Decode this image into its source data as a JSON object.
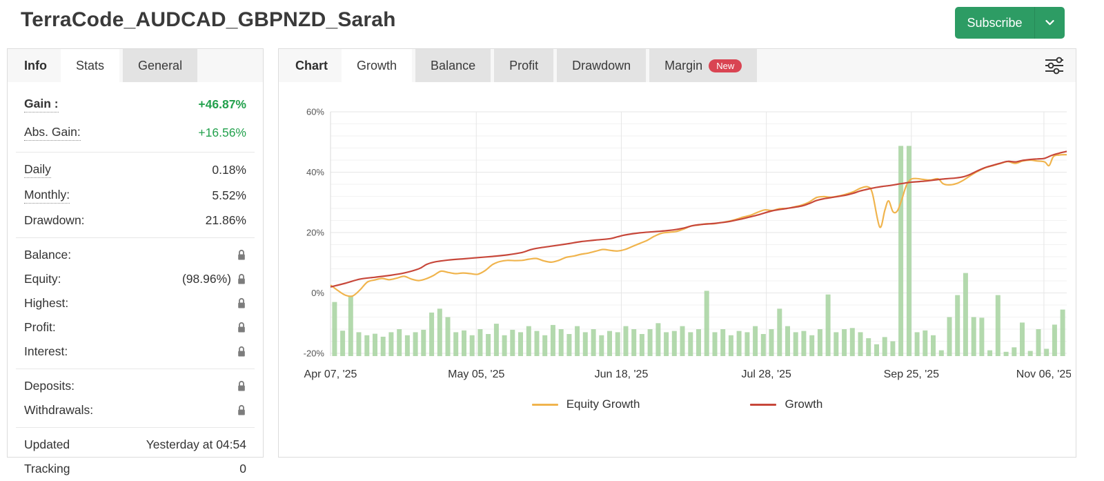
{
  "colors": {
    "subscribe_green": "#2d9c64",
    "gain_green": "#23a14d",
    "badge_red": "#d94452",
    "equity_line": "#f0b44d",
    "growth_line": "#c7473a",
    "bars_green": "#abd5a4"
  },
  "header": {
    "title": "TerraCode_AUDCAD_GBPNZD_Sarah",
    "subscribe_label": "Subscribe"
  },
  "info_panel": {
    "section_label": "Info",
    "tabs": [
      {
        "label": "Stats"
      },
      {
        "label": "General"
      }
    ],
    "rows": {
      "gain": {
        "label": "Gain :",
        "value": "+46.87%"
      },
      "abs_gain": {
        "label": "Abs. Gain:",
        "value": "+16.56%"
      },
      "daily": {
        "label": "Daily",
        "value": "0.18%"
      },
      "monthly": {
        "label": "Monthly:",
        "value": "5.52%"
      },
      "drawdown": {
        "label": "Drawdown:",
        "value": "21.86%"
      },
      "balance": {
        "label": "Balance:",
        "value": ""
      },
      "equity": {
        "label": "Equity:",
        "value": "(98.96%)"
      },
      "highest": {
        "label": "Highest:",
        "value": ""
      },
      "profit": {
        "label": "Profit:",
        "value": ""
      },
      "interest": {
        "label": "Interest:",
        "value": ""
      },
      "deposits": {
        "label": "Deposits:",
        "value": ""
      },
      "withdrawals": {
        "label": "Withdrawals:",
        "value": ""
      },
      "updated": {
        "label": "Updated",
        "value": "Yesterday at 04:54"
      },
      "tracking": {
        "label": "Tracking",
        "value": "0"
      }
    }
  },
  "chart_panel": {
    "section_label": "Chart",
    "tabs": [
      {
        "label": "Growth"
      },
      {
        "label": "Balance"
      },
      {
        "label": "Profit"
      },
      {
        "label": "Drawdown"
      },
      {
        "label": "Margin",
        "badge": "New"
      }
    ]
  },
  "chart_data": {
    "type": "line+bar",
    "ylim": [
      -21.5,
      62
    ],
    "grid": {
      "major": "#e6e6e6",
      "minor": "#f2f2f2",
      "minor_step": 4
    },
    "yticks": [
      {
        "value": 60,
        "label": "60%"
      },
      {
        "value": 40,
        "label": "40%"
      },
      {
        "value": 20,
        "label": "20%"
      },
      {
        "value": 0,
        "label": "0%"
      },
      {
        "value": -20,
        "label": "-20%"
      }
    ],
    "xticks": [
      {
        "pos": 0.0,
        "label": "Apr 07, '25"
      },
      {
        "pos": 0.198,
        "label": "May 05, '25"
      },
      {
        "pos": 0.395,
        "label": "Jun 18, '25"
      },
      {
        "pos": 0.592,
        "label": "Jul 28, '25"
      },
      {
        "pos": 0.789,
        "label": "Sep 25, '25"
      },
      {
        "pos": 0.969,
        "label": "Nov 06, '25"
      }
    ],
    "series": [
      {
        "name": "Equity Growth",
        "color": "#f0b44d",
        "points": [
          [
            0,
            2.6
          ],
          [
            1,
            0.8
          ],
          [
            2,
            -0.7
          ],
          [
            3,
            -1
          ],
          [
            4,
            1
          ],
          [
            5,
            3.6
          ],
          [
            6,
            4.3
          ],
          [
            7,
            4.8
          ],
          [
            8,
            4.4
          ],
          [
            9,
            4.9
          ],
          [
            10,
            5.5
          ],
          [
            11,
            4.6
          ],
          [
            12,
            4.1
          ],
          [
            13,
            4.7
          ],
          [
            14,
            5.8
          ],
          [
            15,
            7.2
          ],
          [
            16,
            6.8
          ],
          [
            17,
            6.4
          ],
          [
            18,
            6.6
          ],
          [
            19,
            6.4
          ],
          [
            20,
            6.2
          ],
          [
            21,
            7.4
          ],
          [
            22,
            9.4
          ],
          [
            23,
            10.4
          ],
          [
            24,
            10.8
          ],
          [
            25,
            10.7
          ],
          [
            26,
            10.8
          ],
          [
            27,
            11.2
          ],
          [
            28,
            11.4
          ],
          [
            29,
            10.6
          ],
          [
            30,
            10.2
          ],
          [
            31,
            10.8
          ],
          [
            32,
            11.8
          ],
          [
            33,
            12.2
          ],
          [
            34,
            12.8
          ],
          [
            35,
            13.2
          ],
          [
            36,
            13.8
          ],
          [
            37,
            14.4
          ],
          [
            38,
            14.1
          ],
          [
            39,
            13.9
          ],
          [
            40,
            14.4
          ],
          [
            41,
            15.4
          ],
          [
            42,
            16.4
          ],
          [
            43,
            17.4
          ],
          [
            44,
            18.8
          ],
          [
            45,
            19.8
          ],
          [
            46,
            20.1
          ],
          [
            47,
            20.4
          ],
          [
            48,
            21.2
          ],
          [
            49,
            22.2
          ],
          [
            50,
            22.5
          ],
          [
            51,
            22.9
          ],
          [
            52,
            22.9
          ],
          [
            53,
            23.3
          ],
          [
            54,
            23.7
          ],
          [
            55,
            24.3
          ],
          [
            56,
            25.1
          ],
          [
            57,
            25.7
          ],
          [
            58,
            26.7
          ],
          [
            59,
            27.5
          ],
          [
            60,
            27.3
          ],
          [
            61,
            27.9
          ],
          [
            62,
            28
          ],
          [
            63,
            28.5
          ],
          [
            64,
            29.1
          ],
          [
            65,
            30.1
          ],
          [
            66,
            31.6
          ],
          [
            67,
            31.9
          ],
          [
            68,
            31.7
          ],
          [
            69,
            32.1
          ],
          [
            70,
            32.7
          ],
          [
            71,
            33.5
          ],
          [
            72,
            34.7
          ],
          [
            73,
            35.1
          ],
          [
            73.6,
            33
          ],
          [
            74.6,
            21.8
          ],
          [
            75.3,
            27.5
          ],
          [
            75.8,
            30.5
          ],
          [
            76.4,
            26.9
          ],
          [
            77,
            27.2
          ],
          [
            77.6,
            31
          ],
          [
            78.2,
            35.5
          ],
          [
            78.8,
            37.6
          ],
          [
            79.5,
            37.9
          ],
          [
            80.5,
            37.6
          ],
          [
            81.5,
            37.4
          ],
          [
            82.5,
            37.8
          ],
          [
            83.2,
            36.2
          ],
          [
            84,
            35.8
          ],
          [
            85,
            36.2
          ],
          [
            86,
            37.4
          ],
          [
            87,
            39
          ],
          [
            88,
            40.4
          ],
          [
            89,
            41.5
          ],
          [
            90,
            42.2
          ],
          [
            91,
            42.9
          ],
          [
            92,
            43.5
          ],
          [
            93,
            42.9
          ],
          [
            94,
            43.7
          ],
          [
            95,
            44
          ],
          [
            96,
            43.7
          ],
          [
            97,
            43.4
          ],
          [
            97.6,
            42.2
          ],
          [
            98.2,
            45.2
          ],
          [
            99,
            45.7
          ],
          [
            100,
            45.8
          ]
        ]
      },
      {
        "name": "Growth",
        "color": "#c7473a",
        "points": [
          [
            0,
            2
          ],
          [
            2,
            3.2
          ],
          [
            4,
            4.6
          ],
          [
            6,
            5.2
          ],
          [
            8,
            5.8
          ],
          [
            10,
            6.6
          ],
          [
            12,
            8
          ],
          [
            13,
            9.4
          ],
          [
            14,
            10.2
          ],
          [
            16,
            10.9
          ],
          [
            18,
            11.3
          ],
          [
            20,
            11.7
          ],
          [
            22,
            12.1
          ],
          [
            24,
            12.6
          ],
          [
            26,
            13.4
          ],
          [
            27,
            14.2
          ],
          [
            28,
            14.8
          ],
          [
            30,
            15.5
          ],
          [
            32,
            16.2
          ],
          [
            34,
            17
          ],
          [
            36,
            17.5
          ],
          [
            38,
            18
          ],
          [
            39,
            18.6
          ],
          [
            40,
            19.2
          ],
          [
            42,
            19.9
          ],
          [
            44,
            20.3
          ],
          [
            46,
            20.7
          ],
          [
            48,
            21.5
          ],
          [
            49,
            22.2
          ],
          [
            50,
            22.6
          ],
          [
            52,
            23
          ],
          [
            54,
            23.6
          ],
          [
            56,
            24.6
          ],
          [
            57,
            25.2
          ],
          [
            58,
            25.8
          ],
          [
            60,
            27.2
          ],
          [
            62,
            28
          ],
          [
            64,
            28.8
          ],
          [
            65,
            29.6
          ],
          [
            66,
            30.6
          ],
          [
            67,
            31.2
          ],
          [
            68,
            31.6
          ],
          [
            70,
            32.4
          ],
          [
            71,
            33
          ],
          [
            72,
            33.8
          ],
          [
            73,
            34.4
          ],
          [
            74,
            34.9
          ],
          [
            75,
            35.3
          ],
          [
            76,
            35.6
          ],
          [
            77,
            36
          ],
          [
            78,
            36.4
          ],
          [
            79,
            36.7
          ],
          [
            80,
            36.9
          ],
          [
            81,
            37.1
          ],
          [
            82,
            37.4
          ],
          [
            83,
            37.7
          ],
          [
            84,
            37.9
          ],
          [
            85,
            38.1
          ],
          [
            86,
            38.5
          ],
          [
            87,
            39.4
          ],
          [
            88,
            40.6
          ],
          [
            89,
            41.6
          ],
          [
            90,
            42.3
          ],
          [
            91,
            43
          ],
          [
            92,
            43.6
          ],
          [
            93,
            43.4
          ],
          [
            94,
            43.9
          ],
          [
            95,
            44.2
          ],
          [
            96,
            44.4
          ],
          [
            97,
            44.6
          ],
          [
            98,
            45.6
          ],
          [
            99,
            46.3
          ],
          [
            100,
            46.9
          ]
        ]
      }
    ],
    "bars": {
      "color": "#abd5a4",
      "values": [
        -3,
        -12.5,
        -1,
        -13,
        -14,
        -13.5,
        -14.5,
        -13,
        -12,
        -14,
        -13,
        -12.2,
        -6.5,
        -5.2,
        -8,
        -13,
        -12.4,
        -14,
        -12,
        -13.6,
        -10.2,
        -14,
        -12.2,
        -13,
        -11,
        -12.6,
        -14,
        -10.6,
        -12,
        -13.6,
        -11,
        -13,
        -12,
        -14,
        -12.6,
        -13,
        -11,
        -12,
        -13.6,
        -12,
        -10,
        -13,
        -12.6,
        -11,
        -13,
        -12,
        0.7,
        -13,
        -12,
        -14,
        -12.6,
        -13,
        -11,
        -13.6,
        -12,
        -5.2,
        -11,
        -13,
        -12.6,
        -14,
        -12,
        -0.5,
        -13,
        -12,
        -11.6,
        -13,
        -15,
        -17,
        -14.6,
        -16,
        48.7,
        48.7,
        -13,
        -12.4,
        -14,
        -19,
        -8,
        -0.7,
        6.6,
        -8,
        -8.2,
        -19,
        -0.7,
        -19.5,
        -18,
        -9.8,
        -19.2,
        -12,
        -18.5,
        -10.5,
        -5.5
      ]
    },
    "legend": [
      "Equity Growth",
      "Growth"
    ]
  }
}
